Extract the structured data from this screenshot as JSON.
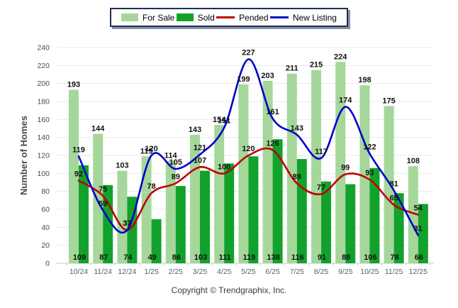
{
  "legend": {
    "items": [
      {
        "label": "For Sale",
        "color": "#A5D79B",
        "marker": "box"
      },
      {
        "label": "Sold",
        "color": "#12A22C",
        "marker": "box"
      },
      {
        "label": "Pended",
        "color": "#C00000",
        "marker": "line"
      },
      {
        "label": "New Listing",
        "color": "#0000CC",
        "marker": "line"
      }
    ]
  },
  "chart_data": {
    "type": "bar+line",
    "title": "",
    "categories": [
      "10/24",
      "11/24",
      "12/24",
      "1/25",
      "2/25",
      "3/25",
      "4/25",
      "5/25",
      "6/25",
      "7/25",
      "8/25",
      "9/25",
      "10/25",
      "11/25",
      "12/25"
    ],
    "series": [
      {
        "name": "For Sale",
        "type": "bar",
        "color": "#A5D79B",
        "values": [
          193,
          144,
          103,
          119,
          114,
          143,
          154,
          199,
          203,
          211,
          215,
          224,
          198,
          175,
          108
        ]
      },
      {
        "name": "Sold",
        "type": "bar",
        "color": "#12A22C",
        "values": [
          109,
          87,
          74,
          49,
          86,
          103,
          111,
          119,
          138,
          116,
          91,
          88,
          106,
          78,
          66
        ]
      },
      {
        "name": "Pended",
        "type": "line",
        "color": "#C00000",
        "values": [
          92,
          75,
          37,
          78,
          89,
          107,
          100,
          120,
          126,
          89,
          77,
          99,
          93,
          65,
          54
        ]
      },
      {
        "name": "New Listing",
        "type": "line",
        "color": "#0000CC",
        "values": [
          119,
          59,
          37,
          120,
          105,
          121,
          151,
          227,
          161,
          143,
          117,
          174,
          122,
          81,
          31
        ]
      }
    ],
    "xlabel": "",
    "ylabel": "Number of Homes",
    "ylim": [
      0,
      240
    ],
    "ytick_step": 20,
    "grid": true,
    "legend_position": "top"
  },
  "footer": {
    "copyright": "Copyright © Trendgraphix, Inc."
  }
}
